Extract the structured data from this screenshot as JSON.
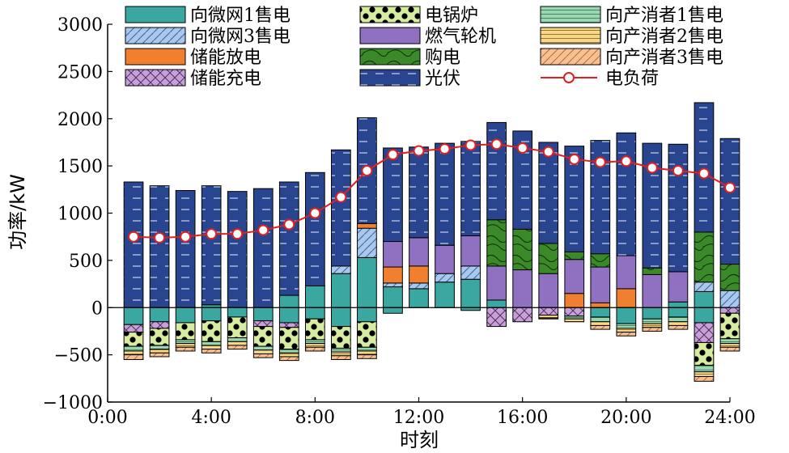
{
  "chart_data": {
    "type": "bar",
    "xlabel": "时刻",
    "ylabel": "功率/kW",
    "xlim": [
      0,
      24
    ],
    "ylim": [
      -1000,
      3000
    ],
    "xticks": [
      "0:00",
      "4:00",
      "8:00",
      "12:00",
      "16:00",
      "20:00",
      "24:00"
    ],
    "yticks": [
      "−1000",
      "−500",
      "0",
      "500",
      "1000",
      "1500",
      "2000",
      "2500",
      "3000"
    ],
    "hours": [
      1,
      2,
      3,
      4,
      5,
      6,
      7,
      8,
      9,
      10,
      11,
      12,
      13,
      14,
      15,
      16,
      17,
      18,
      19,
      20,
      21,
      22,
      23,
      24
    ],
    "series": [
      {
        "name": "向微网1售电",
        "color": "#3aa8a0",
        "pattern": "solid",
        "values": [
          -180,
          -150,
          -160,
          -140,
          -100,
          -140,
          -160,
          -120,
          -200,
          -150,
          -60,
          0,
          0,
          -30,
          0,
          0,
          0,
          0,
          -100,
          -170,
          -120,
          -100,
          -160,
          0
        ]
      },
      {
        "name": "向微网3售电",
        "color": "#a8c8ec",
        "pattern": "hatch",
        "values": [
          0,
          0,
          0,
          0,
          0,
          0,
          0,
          0,
          0,
          0,
          0,
          0,
          0,
          0,
          0,
          0,
          0,
          0,
          0,
          0,
          0,
          0,
          0,
          0
        ]
      },
      {
        "name": "储能放电",
        "color": "#f08030",
        "pattern": "solid",
        "values": [
          0,
          0,
          0,
          0,
          0,
          0,
          0,
          0,
          0,
          0,
          0,
          0,
          0,
          0,
          0,
          0,
          0,
          0,
          0,
          0,
          0,
          0,
          0,
          0
        ]
      },
      {
        "name": "储能充电",
        "color": "#c8a0d8",
        "pattern": "cross",
        "values": [
          -80,
          -70,
          0,
          0,
          0,
          -60,
          -50,
          0,
          0,
          0,
          0,
          0,
          0,
          0,
          -200,
          -150,
          -80,
          -90,
          0,
          0,
          0,
          0,
          -210,
          -60
        ]
      },
      {
        "name": "电锅炉",
        "color": "#d8eca0",
        "pattern": "dots",
        "values": [
          -150,
          -180,
          -180,
          -220,
          -220,
          -210,
          -230,
          -220,
          -230,
          -270,
          0,
          0,
          0,
          0,
          0,
          0,
          0,
          0,
          0,
          0,
          0,
          0,
          -240,
          -270
        ]
      },
      {
        "name": "燃气轮机",
        "color": "#9070c0",
        "pattern": "solid",
        "values": [
          0,
          0,
          0,
          0,
          0,
          0,
          0,
          0,
          0,
          0,
          0,
          0,
          0,
          0,
          0,
          0,
          0,
          0,
          0,
          0,
          0,
          0,
          0,
          0
        ]
      },
      {
        "name": "购电",
        "color": "#3a8a2a",
        "pattern": "contour",
        "values": [
          0,
          0,
          0,
          0,
          0,
          0,
          0,
          0,
          0,
          0,
          0,
          0,
          0,
          0,
          0,
          0,
          0,
          0,
          0,
          0,
          0,
          0,
          0,
          0
        ]
      },
      {
        "name": "光伏",
        "color": "#2a4590",
        "pattern": "dash",
        "values": [
          0,
          0,
          0,
          0,
          0,
          0,
          0,
          0,
          0,
          0,
          0,
          0,
          0,
          0,
          0,
          0,
          0,
          0,
          0,
          0,
          0,
          0,
          0,
          0
        ]
      },
      {
        "name": "向产消者1售电",
        "color": "#98d8b0",
        "pattern": "hline",
        "values": [
          -50,
          -40,
          -40,
          -40,
          -40,
          -40,
          -40,
          -40,
          -40,
          -40,
          0,
          0,
          0,
          0,
          0,
          0,
          0,
          -30,
          -50,
          -50,
          -50,
          -50,
          -70,
          -50
        ]
      },
      {
        "name": "向产消者2售电",
        "color": "#f8d888",
        "pattern": "hline",
        "values": [
          -40,
          -40,
          -40,
          -40,
          -40,
          -40,
          -40,
          -40,
          -40,
          -40,
          0,
          0,
          0,
          0,
          0,
          0,
          -30,
          -30,
          -40,
          -40,
          -40,
          -40,
          -50,
          -40
        ]
      },
      {
        "name": "向产消者3售电",
        "color": "#f8c090",
        "pattern": "diag",
        "values": [
          -50,
          -40,
          -40,
          -40,
          -40,
          -40,
          -40,
          -40,
          -40,
          -40,
          0,
          0,
          0,
          0,
          0,
          0,
          -10,
          0,
          -40,
          -40,
          -40,
          -40,
          -50,
          -40
        ]
      }
    ],
    "positive_stacks": [
      {
        "hour": 1,
        "segs": [
          [
            "光伏",
            1330
          ]
        ]
      },
      {
        "hour": 2,
        "segs": [
          [
            "光伏",
            1290
          ]
        ]
      },
      {
        "hour": 3,
        "segs": [
          [
            "光伏",
            1240
          ]
        ]
      },
      {
        "hour": 4,
        "segs": [
          [
            "向微网1售电",
            30
          ],
          [
            "光伏",
            1260
          ]
        ]
      },
      {
        "hour": 5,
        "segs": [
          [
            "光伏",
            1230
          ]
        ]
      },
      {
        "hour": 6,
        "segs": [
          [
            "光伏",
            1260
          ]
        ]
      },
      {
        "hour": 7,
        "segs": [
          [
            "向微网1售电",
            130
          ],
          [
            "光伏",
            1200
          ]
        ]
      },
      {
        "hour": 8,
        "segs": [
          [
            "向微网1售电",
            230
          ],
          [
            "光伏",
            1200
          ]
        ]
      },
      {
        "hour": 9,
        "segs": [
          [
            "向微网1售电",
            360
          ],
          [
            "向微网3售电",
            80
          ],
          [
            "光伏",
            1230
          ]
        ]
      },
      {
        "hour": 10,
        "segs": [
          [
            "向微网1售电",
            530
          ],
          [
            "向微网3售电",
            310
          ],
          [
            "储能放电",
            50
          ],
          [
            "光伏",
            1120
          ]
        ]
      },
      {
        "hour": 11,
        "segs": [
          [
            "向微网1售电",
            220
          ],
          [
            "向微网3售电",
            40
          ],
          [
            "储能放电",
            170
          ],
          [
            "燃气轮机",
            270
          ],
          [
            "光伏",
            990
          ]
        ]
      },
      {
        "hour": 12,
        "segs": [
          [
            "向微网1售电",
            200
          ],
          [
            "向微网3售电",
            60
          ],
          [
            "储能放电",
            180
          ],
          [
            "燃气轮机",
            300
          ],
          [
            "光伏",
            960
          ]
        ]
      },
      {
        "hour": 13,
        "segs": [
          [
            "向微网1售电",
            270
          ],
          [
            "向微网3售电",
            90
          ],
          [
            "燃气轮机",
            300
          ],
          [
            "光伏",
            1080
          ]
        ]
      },
      {
        "hour": 14,
        "segs": [
          [
            "向微网1售电",
            300
          ],
          [
            "向微网3售电",
            140
          ],
          [
            "燃气轮机",
            320
          ],
          [
            "光伏",
            1000
          ]
        ]
      },
      {
        "hour": 15,
        "segs": [
          [
            "向微网1售电",
            80
          ],
          [
            "燃气轮机",
            360
          ],
          [
            "购电",
            490
          ],
          [
            "光伏",
            1030
          ]
        ]
      },
      {
        "hour": 16,
        "segs": [
          [
            "燃气轮机",
            400
          ],
          [
            "购电",
            430
          ],
          [
            "光伏",
            1040
          ]
        ]
      },
      {
        "hour": 17,
        "segs": [
          [
            "燃气轮机",
            360
          ],
          [
            "购电",
            320
          ],
          [
            "光伏",
            1070
          ]
        ]
      },
      {
        "hour": 18,
        "segs": [
          [
            "储能放电",
            150
          ],
          [
            "燃气轮机",
            360
          ],
          [
            "购电",
            80
          ],
          [
            "光伏",
            1120
          ]
        ]
      },
      {
        "hour": 19,
        "segs": [
          [
            "储能放电",
            50
          ],
          [
            "燃气轮机",
            380
          ],
          [
            "购电",
            140
          ],
          [
            "光伏",
            1200
          ]
        ]
      },
      {
        "hour": 20,
        "segs": [
          [
            "储能放电",
            200
          ],
          [
            "燃气轮机",
            350
          ],
          [
            "光伏",
            1300
          ]
        ]
      },
      {
        "hour": 21,
        "segs": [
          [
            "燃气轮机",
            350
          ],
          [
            "购电",
            70
          ],
          [
            "光伏",
            1320
          ]
        ]
      },
      {
        "hour": 22,
        "segs": [
          [
            "向微网1售电",
            60
          ],
          [
            "燃气轮机",
            320
          ],
          [
            "光伏",
            1350
          ]
        ]
      },
      {
        "hour": 23,
        "segs": [
          [
            "向微网1售电",
            170
          ],
          [
            "向微网3售电",
            100
          ],
          [
            "购电",
            530
          ],
          [
            "光伏",
            1370
          ]
        ]
      },
      {
        "hour": 24,
        "segs": [
          [
            "向微网3售电",
            180
          ],
          [
            "购电",
            280
          ],
          [
            "光伏",
            1330
          ]
        ]
      }
    ],
    "load": {
      "name": "电负荷",
      "color": "#e02020",
      "values": [
        750,
        740,
        750,
        780,
        780,
        820,
        880,
        1000,
        1170,
        1450,
        1620,
        1660,
        1680,
        1720,
        1730,
        1690,
        1650,
        1570,
        1540,
        1550,
        1480,
        1450,
        1420,
        1270
      ]
    },
    "legend": {
      "placement": "top",
      "columns": 3,
      "order": [
        "向微网1售电",
        "电锅炉",
        "向产消者1售电",
        "向微网3售电",
        "燃气轮机",
        "向产消者2售电",
        "储能放电",
        "购电",
        "向产消者3售电",
        "储能充电",
        "光伏",
        "电负荷"
      ]
    }
  }
}
